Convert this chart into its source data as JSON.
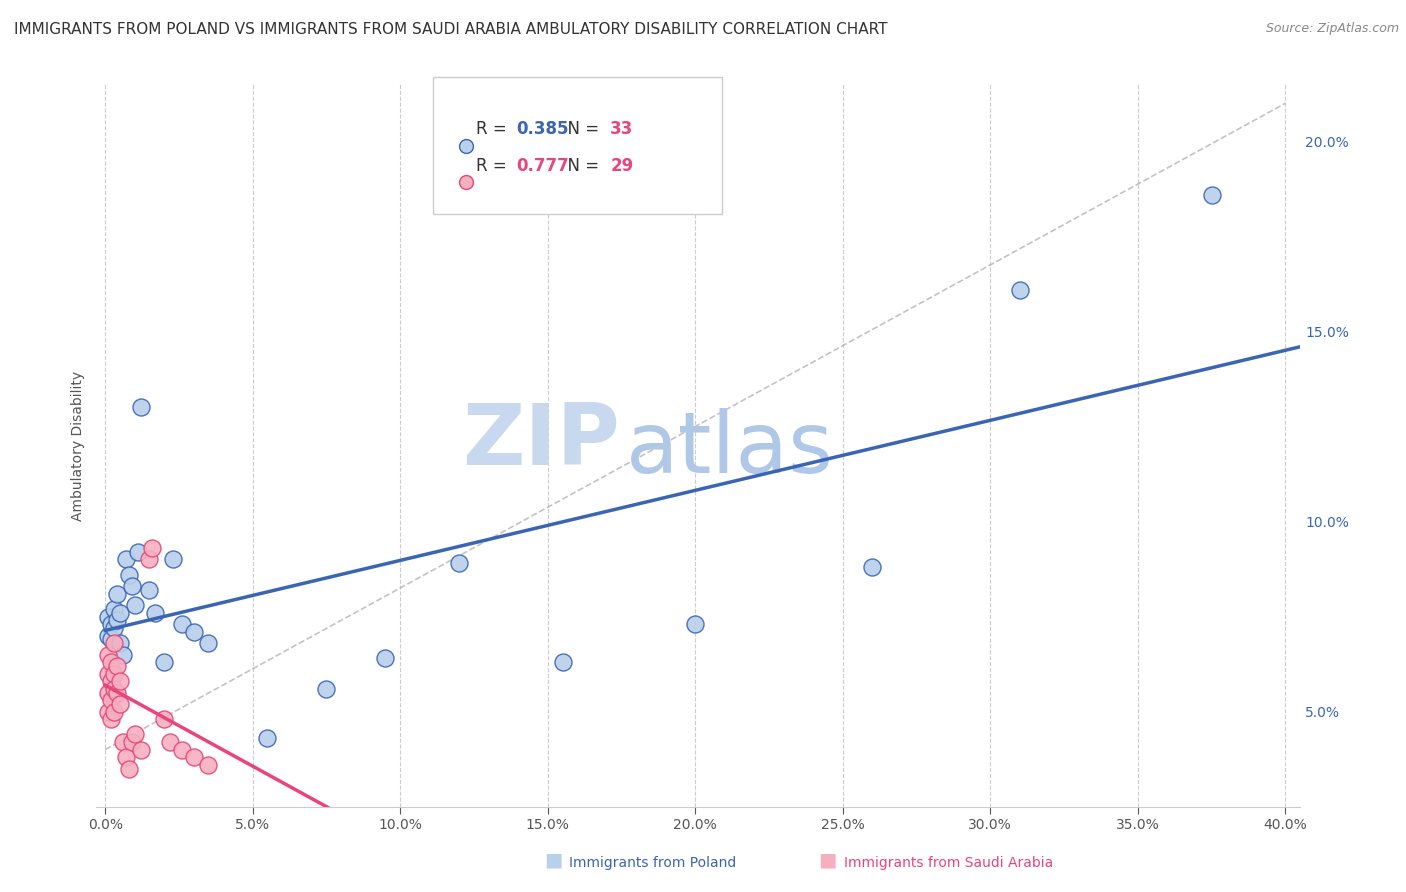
{
  "title": "IMMIGRANTS FROM POLAND VS IMMIGRANTS FROM SAUDI ARABIA AMBULATORY DISABILITY CORRELATION CHART",
  "source": "Source: ZipAtlas.com",
  "ylabel": "Ambulatory Disability",
  "xlim": [
    -0.003,
    0.405
  ],
  "ylim": [
    0.025,
    0.215
  ],
  "poland_x": [
    0.001,
    0.001,
    0.002,
    0.002,
    0.003,
    0.003,
    0.004,
    0.004,
    0.005,
    0.005,
    0.006,
    0.007,
    0.008,
    0.009,
    0.01,
    0.011,
    0.012,
    0.015,
    0.017,
    0.02,
    0.023,
    0.026,
    0.03,
    0.035,
    0.055,
    0.075,
    0.095,
    0.12,
    0.155,
    0.2,
    0.26,
    0.31,
    0.375
  ],
  "poland_y": [
    0.07,
    0.075,
    0.073,
    0.069,
    0.072,
    0.077,
    0.074,
    0.081,
    0.068,
    0.076,
    0.065,
    0.09,
    0.086,
    0.083,
    0.078,
    0.092,
    0.13,
    0.082,
    0.076,
    0.063,
    0.09,
    0.073,
    0.071,
    0.068,
    0.043,
    0.056,
    0.064,
    0.089,
    0.063,
    0.073,
    0.088,
    0.161,
    0.186
  ],
  "saudi_x": [
    0.001,
    0.001,
    0.001,
    0.001,
    0.002,
    0.002,
    0.002,
    0.002,
    0.003,
    0.003,
    0.003,
    0.003,
    0.004,
    0.004,
    0.005,
    0.005,
    0.006,
    0.007,
    0.008,
    0.009,
    0.01,
    0.012,
    0.015,
    0.016,
    0.02,
    0.022,
    0.026,
    0.03,
    0.035
  ],
  "saudi_y": [
    0.06,
    0.065,
    0.055,
    0.05,
    0.063,
    0.058,
    0.053,
    0.048,
    0.068,
    0.06,
    0.056,
    0.05,
    0.062,
    0.055,
    0.058,
    0.052,
    0.042,
    0.038,
    0.035,
    0.042,
    0.044,
    0.04,
    0.09,
    0.093,
    0.048,
    0.042,
    0.04,
    0.038,
    0.036
  ],
  "poland_color": "#b8d0ea",
  "saudi_color": "#f5b0c0",
  "poland_line_color": "#3a65b5",
  "saudi_line_color": "#e8457a",
  "poland_R": 0.385,
  "poland_N": 33,
  "saudi_R": 0.777,
  "saudi_N": 29,
  "watermark_zip": "ZIP",
  "watermark_atlas": "atlas",
  "watermark_color_zip": "#c8d8ee",
  "watermark_color_atlas": "#b0c8e8",
  "grid_color": "#cccccc",
  "background_color": "#ffffff",
  "title_fontsize": 11,
  "axis_label_fontsize": 10,
  "tick_fontsize": 10,
  "legend_fontsize": 12,
  "ref_line_start_x": 0.0,
  "ref_line_end_x": 0.4,
  "ref_line_start_y": 0.04,
  "ref_line_end_y": 0.21
}
